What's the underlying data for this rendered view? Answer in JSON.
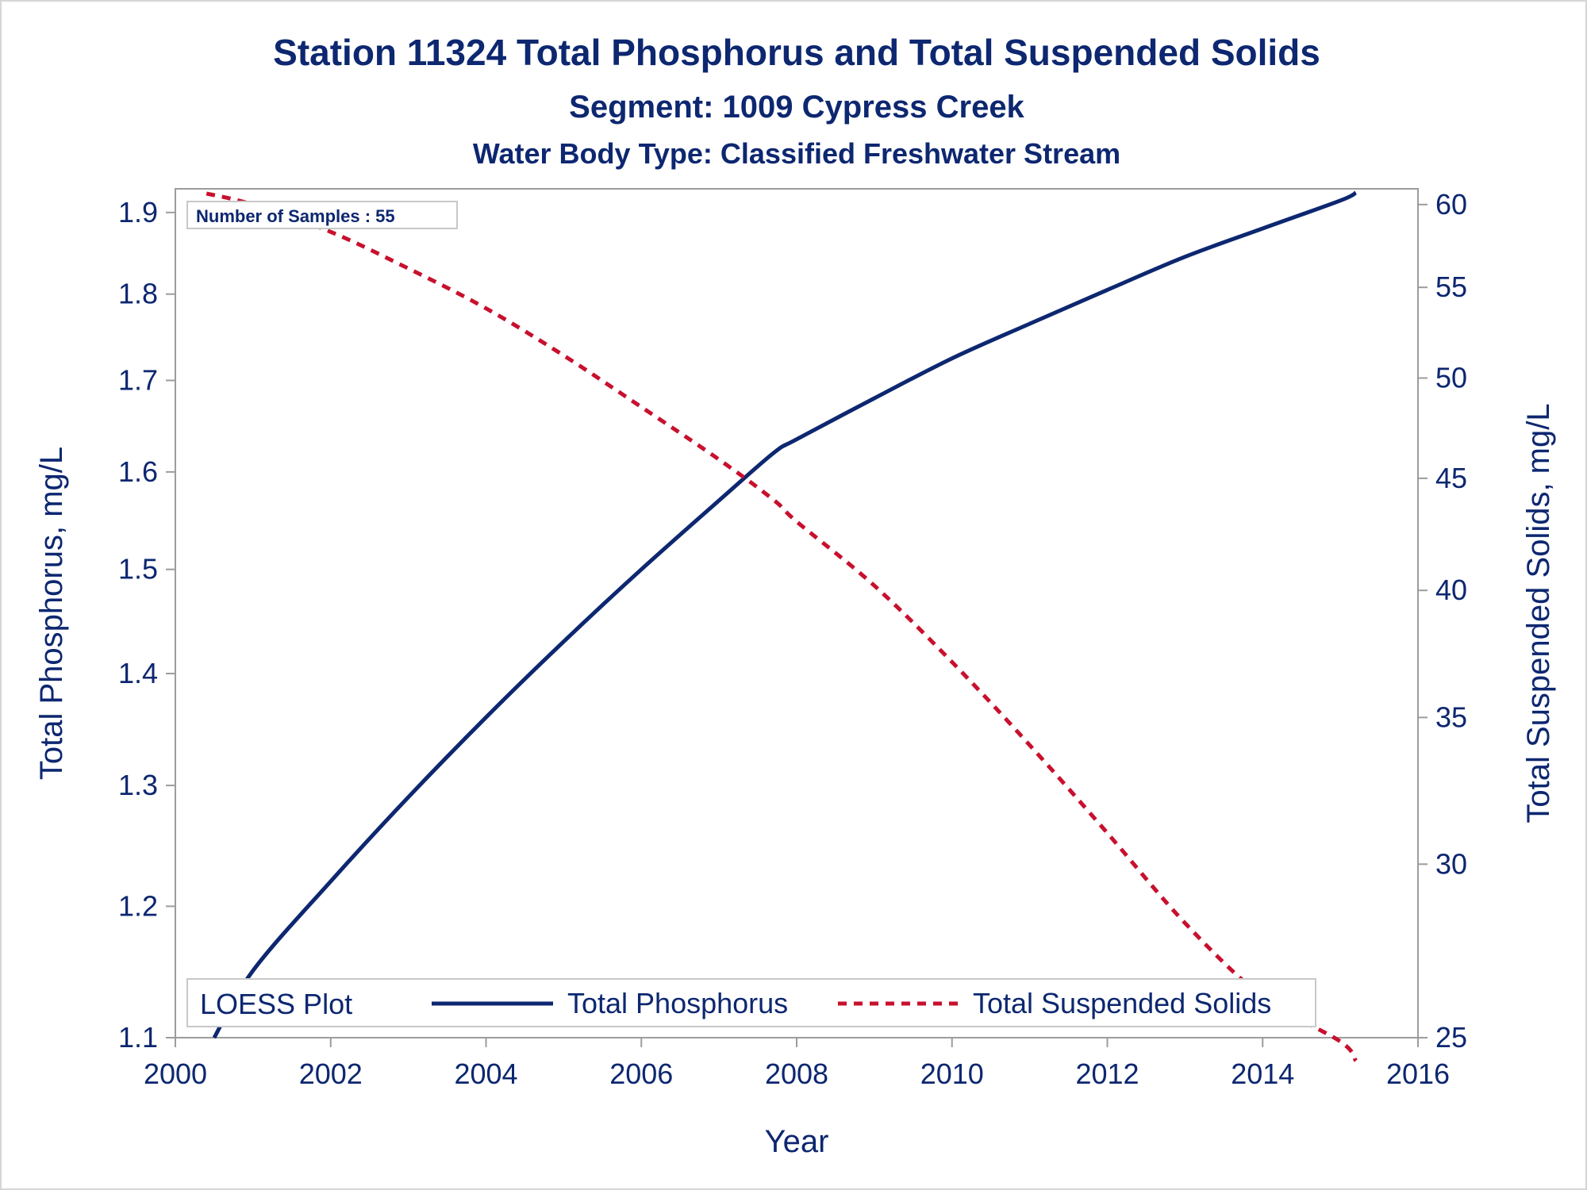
{
  "chart_data": {
    "type": "line",
    "title": "Station 11324  Total Phosphorus and Total Suspended Solids",
    "subtitle": "Segment: 1009  Cypress Creek",
    "subtitle2": "Water Body Type: Classified Freshwater Stream",
    "xlabel": "Year",
    "ylabel": "Total Phosphorus, mg/L",
    "y2label": "Total Suspended Solids, mg/L",
    "xlim": [
      2000,
      2016
    ],
    "ylim": [
      1.1,
      1.93
    ],
    "y2lim": [
      25,
      61
    ],
    "y_scale": "log",
    "y2_scale": "log",
    "x_ticks": [
      "2000",
      "2002",
      "2004",
      "2006",
      "2008",
      "2010",
      "2012",
      "2014",
      "2016"
    ],
    "y_ticks": [
      "1.1",
      "1.2",
      "1.3",
      "1.4",
      "1.5",
      "1.6",
      "1.7",
      "1.8",
      "1.9"
    ],
    "y2_ticks": [
      "25",
      "30",
      "35",
      "40",
      "45",
      "50",
      "55",
      "60"
    ],
    "inset_label": "Number of Samples : 55",
    "legend": {
      "title": "LOESS Plot",
      "position": "bottom-left"
    },
    "grid": false,
    "series": [
      {
        "name": "Total Phosphorus",
        "axis": "left",
        "color": "#0d2770",
        "line_style": "solid",
        "x": [
          2000.5,
          2001.0,
          2002.0,
          2003.0,
          2004.0,
          2005.0,
          2006.0,
          2007.0,
          2007.7,
          2008.0,
          2009.0,
          2010.0,
          2011.0,
          2012.0,
          2013.0,
          2014.0,
          2015.0,
          2015.2
        ],
        "y": [
          1.1,
          1.15,
          1.22,
          1.29,
          1.36,
          1.43,
          1.5,
          1.57,
          1.62,
          1.635,
          1.68,
          1.725,
          1.765,
          1.805,
          1.845,
          1.88,
          1.915,
          1.925
        ]
      },
      {
        "name": "Total Suspended Solids",
        "axis": "right",
        "color": "#c8102e",
        "line_style": "dashed",
        "x": [
          2000.4,
          2001.0,
          2002.0,
          2003.0,
          2004.0,
          2005.0,
          2006.0,
          2007.0,
          2007.7,
          2008.0,
          2009.0,
          2010.0,
          2011.0,
          2012.0,
          2013.0,
          2014.0,
          2015.0,
          2015.2
        ],
        "y": [
          60.7,
          60.0,
          58.3,
          56.1,
          53.8,
          51.2,
          48.5,
          45.9,
          44.0,
          43.0,
          40.2,
          37.1,
          34.0,
          31.0,
          28.2,
          26.1,
          24.9,
          24.4
        ]
      }
    ]
  }
}
